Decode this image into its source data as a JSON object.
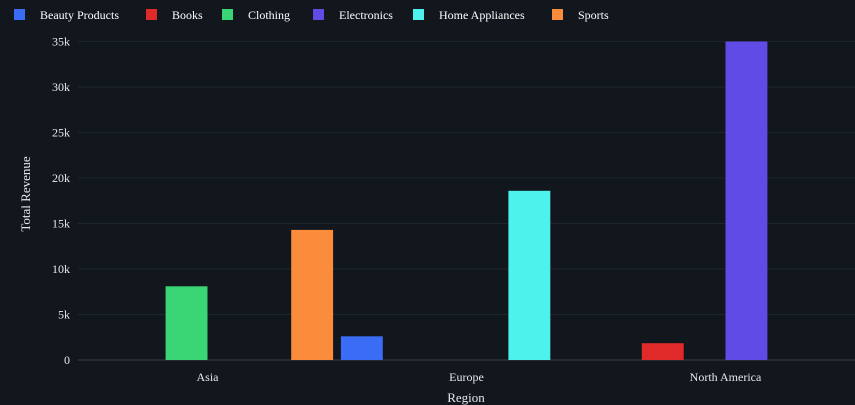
{
  "chart_data": {
    "type": "bar",
    "title": "",
    "xlabel": "Region",
    "ylabel": "Total Revenue",
    "categories": [
      "Asia",
      "Europe",
      "North America"
    ],
    "ylim": [
      0,
      35500
    ],
    "yticks": [
      0,
      5000,
      10000,
      15000,
      20000,
      25000,
      30000,
      35000
    ],
    "ytick_labels": [
      "0",
      "5k",
      "10k",
      "15k",
      "20k",
      "25k",
      "30k",
      "35k"
    ],
    "grid": true,
    "legend_position": "top-left",
    "series": [
      {
        "name": "Beauty Products",
        "color": "#3a6cf5",
        "values": [
          null,
          2600,
          null
        ]
      },
      {
        "name": "Books",
        "color": "#e02a2a",
        "values": [
          null,
          null,
          1850
        ]
      },
      {
        "name": "Clothing",
        "color": "#3ad675",
        "values": [
          8100,
          null,
          null
        ]
      },
      {
        "name": "Electronics",
        "color": "#5f4ce6",
        "values": [
          null,
          null,
          35000
        ]
      },
      {
        "name": "Home Appliances",
        "color": "#4ef2ec",
        "values": [
          null,
          18600,
          null
        ]
      },
      {
        "name": "Sports",
        "color": "#fa8c3c",
        "values": [
          14300,
          null,
          null
        ]
      }
    ]
  },
  "theme": {
    "background": "#12161d",
    "grid_color": "#1f252e",
    "baseline_color": "#3a4048",
    "text_color": "#e6e8ec"
  }
}
